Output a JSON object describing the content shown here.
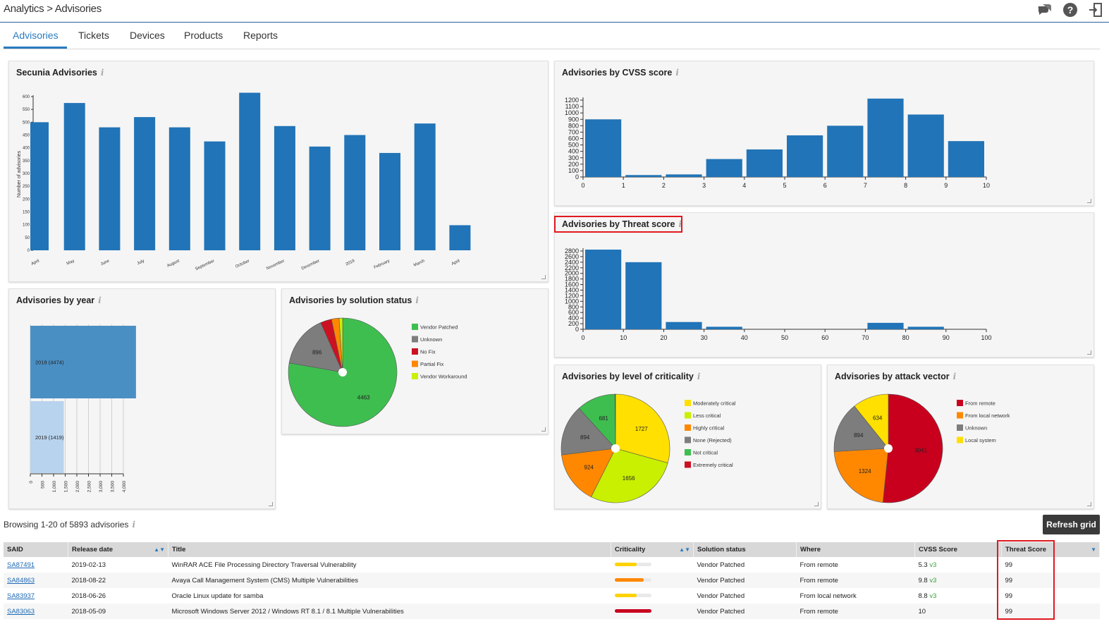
{
  "breadcrumb": {
    "root": "Analytics",
    "sep": ">",
    "current": "Advisories"
  },
  "tabs": [
    "Advisories",
    "Tickets",
    "Devices",
    "Products",
    "Reports"
  ],
  "panels": {
    "secunia": "Secunia Advisories",
    "cvss": "Advisories by CVSS score",
    "threat": "Advisories by Threat score",
    "year": "Advisories by year",
    "solution": "Advisories by solution status",
    "criticality": "Advisories by level of criticality",
    "vector": "Advisories by attack vector"
  },
  "chart_data": [
    {
      "type": "bar",
      "title": "Secunia Advisories",
      "ylabel": "Number of advisories",
      "ylim": [
        0,
        600
      ],
      "yticks": [
        0,
        50,
        100,
        150,
        200,
        250,
        300,
        350,
        400,
        450,
        500,
        550,
        600
      ],
      "categories": [
        "April",
        "May",
        "June",
        "July",
        "August",
        "September",
        "October",
        "November",
        "December",
        "2019",
        "February",
        "March",
        "April"
      ],
      "values": [
        500,
        575,
        480,
        520,
        480,
        425,
        615,
        485,
        405,
        450,
        380,
        495,
        98
      ]
    },
    {
      "type": "bar",
      "title": "Advisories by CVSS score",
      "ylim": [
        0,
        1200
      ],
      "yticks": [
        0,
        100,
        200,
        300,
        400,
        500,
        600,
        700,
        800,
        900,
        1000,
        1100,
        1200
      ],
      "xticks": [
        0,
        1,
        2,
        3,
        4,
        5,
        6,
        7,
        8,
        9,
        10
      ],
      "values": [
        900,
        30,
        40,
        280,
        430,
        650,
        800,
        1250,
        975,
        560
      ]
    },
    {
      "type": "bar",
      "title": "Advisories by Threat score",
      "ylim": [
        0,
        2800
      ],
      "yticks": [
        0,
        200,
        400,
        600,
        800,
        1000,
        1200,
        1400,
        1600,
        1800,
        2000,
        2200,
        2400,
        2600,
        2800
      ],
      "xticks": [
        0,
        10,
        20,
        30,
        40,
        50,
        60,
        70,
        80,
        90,
        100
      ],
      "values": [
        2850,
        2400,
        260,
        90,
        0,
        0,
        0,
        230,
        90,
        0,
        0
      ]
    },
    {
      "type": "bar",
      "title": "Advisories by year",
      "categories": [
        "2018 (4474)",
        "2019 (1419)"
      ],
      "values": [
        4474,
        1419
      ],
      "xticks": [
        "0",
        "500",
        "1,000",
        "1,500",
        "2,000",
        "2,500",
        "3,000",
        "3,500",
        "4,000"
      ]
    },
    {
      "type": "pie",
      "title": "Advisories by solution status",
      "slices": [
        {
          "label": "Vendor Patched",
          "value": 4463,
          "color": "#3fbe50",
          "shown": "4463"
        },
        {
          "label": "Unknown",
          "value": 896,
          "color": "#7d7d7d",
          "shown": "896"
        },
        {
          "label": "No Fix",
          "value": 190,
          "color": "#cc1122",
          "shown": ""
        },
        {
          "label": "Partial Fix",
          "value": 130,
          "color": "#ff8800",
          "shown": ""
        },
        {
          "label": "Vendor Workaround",
          "value": 60,
          "color": "#c8f000",
          "shown": ""
        }
      ]
    },
    {
      "type": "pie",
      "title": "Advisories by level of criticality",
      "slices": [
        {
          "label": "Moderately critical",
          "value": 1727,
          "color": "#ffe000",
          "shown": "1727"
        },
        {
          "label": "Less critical",
          "value": 1656,
          "color": "#c8f000",
          "shown": "1656"
        },
        {
          "label": "Highly critical",
          "value": 924,
          "color": "#ff8800",
          "shown": "924"
        },
        {
          "label": "None (Rejected)",
          "value": 894,
          "color": "#7d7d7d",
          "shown": "894"
        },
        {
          "label": "Not critical",
          "value": 681,
          "color": "#3fbe50",
          "shown": "681"
        },
        {
          "label": "Extremely critical",
          "value": 10,
          "color": "#cc1122",
          "shown": ""
        }
      ]
    },
    {
      "type": "pie",
      "title": "Advisories by attack vector",
      "slices": [
        {
          "label": "From remote",
          "value": 3041,
          "color": "#c8001e",
          "shown": "3041"
        },
        {
          "label": "From local network",
          "value": 1324,
          "color": "#ff8800",
          "shown": "1324"
        },
        {
          "label": "Unknown",
          "value": 894,
          "color": "#7d7d7d",
          "shown": "894"
        },
        {
          "label": "Local system",
          "value": 634,
          "color": "#ffe000",
          "shown": "634"
        }
      ]
    }
  ],
  "grid": {
    "browsing": "Browsing 1-20 of 5893 advisories",
    "refresh_label": "Refresh grid",
    "columns": [
      "SAID",
      "Release date",
      "Title",
      "Criticality",
      "Solution status",
      "Where",
      "CVSS Score",
      "Threat Score"
    ],
    "rows": [
      {
        "said": "SA87491",
        "date": "2019-02-13",
        "title": "WinRAR ACE File Processing Directory Traversal Vulnerability",
        "crit_level": 0.6,
        "crit_color": "#ffd200",
        "solution": "Vendor Patched",
        "where": "From remote",
        "cvss": "5.3",
        "cvss_v": "v3",
        "threat": "99"
      },
      {
        "said": "SA84863",
        "date": "2018-08-22",
        "title": "Avaya Call Management System (CMS) Multiple Vulnerabilities",
        "crit_level": 0.8,
        "crit_color": "#ff8800",
        "solution": "Vendor Patched",
        "where": "From remote",
        "cvss": "9.8",
        "cvss_v": "v3",
        "threat": "99"
      },
      {
        "said": "SA83937",
        "date": "2018-06-26",
        "title": "Oracle Linux update for samba",
        "crit_level": 0.6,
        "crit_color": "#ffd200",
        "solution": "Vendor Patched",
        "where": "From local network",
        "cvss": "8.8",
        "cvss_v": "v3",
        "threat": "99"
      },
      {
        "said": "SA83063",
        "date": "2018-05-09",
        "title": "Microsoft Windows Server 2012 / Windows RT 8.1 / 8.1 Multiple Vulnerabilities",
        "crit_level": 1.0,
        "crit_color": "#c8001e",
        "solution": "Vendor Patched",
        "where": "From remote",
        "cvss": "10",
        "cvss_v": "",
        "threat": "99"
      }
    ]
  }
}
